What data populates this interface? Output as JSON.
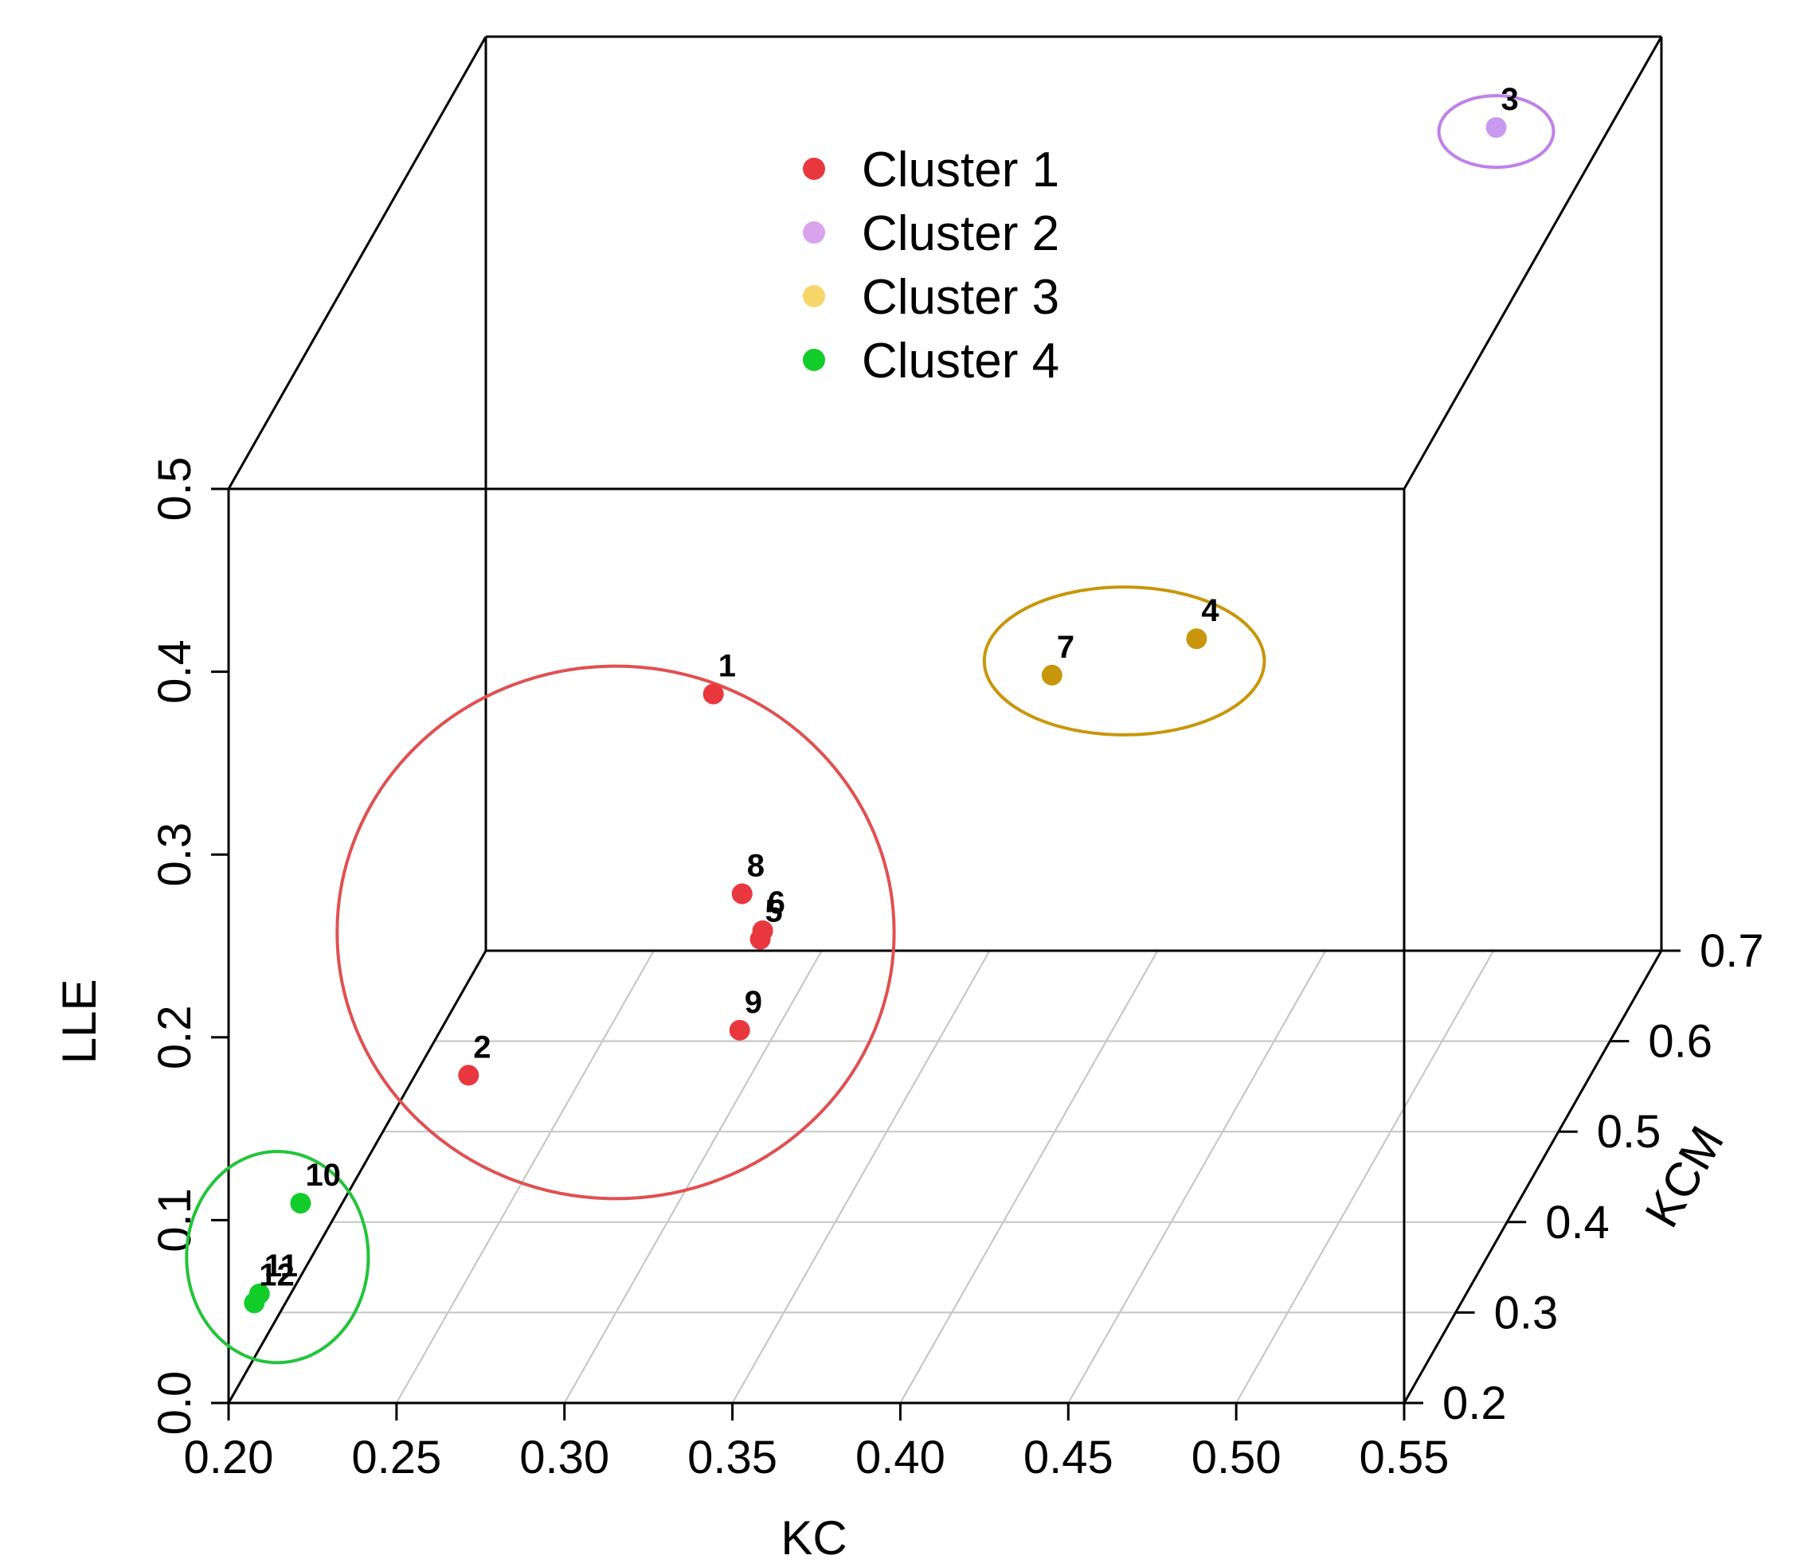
{
  "chart_data": {
    "type": "scatter3d",
    "title": "",
    "xlabel": "KC",
    "ylabel": "KCM",
    "zlabel": "LLE",
    "xlim": [
      0.2,
      0.55
    ],
    "ylim": [
      0.2,
      0.7
    ],
    "zlim": [
      0.0,
      0.5
    ],
    "x_ticks": [
      "0.20",
      "0.25",
      "0.30",
      "0.35",
      "0.40",
      "0.45",
      "0.50",
      "0.55"
    ],
    "y_ticks": [
      "0.2",
      "0.3",
      "0.4",
      "0.5",
      "0.6",
      "0.7"
    ],
    "z_ticks": [
      "0.0",
      "0.1",
      "0.2",
      "0.3",
      "0.4",
      "0.5"
    ],
    "grid": true,
    "legend_position": "top-center",
    "series": [
      {
        "name": "Cluster 1",
        "color": "#e8383d",
        "ring_color": "#e05050",
        "points": [
          {
            "label": "1",
            "x": 0.28,
            "y": 0.62,
            "z": 0.18
          },
          {
            "label": "2",
            "x": 0.25,
            "y": 0.34,
            "z": 0.11
          },
          {
            "label": "5",
            "x": 0.32,
            "y": 0.45,
            "z": 0.13
          },
          {
            "label": "6",
            "x": 0.31,
            "y": 0.52,
            "z": 0.1
          },
          {
            "label": "8",
            "x": 0.31,
            "y": 0.48,
            "z": 0.14
          },
          {
            "label": "9",
            "x": 0.32,
            "y": 0.41,
            "z": 0.1
          }
        ]
      },
      {
        "name": "Cluster 2",
        "color": "#c89af0",
        "ring_color": "#c080e8",
        "points": [
          {
            "label": "3",
            "x": 0.51,
            "y": 0.64,
            "z": 0.48
          }
        ]
      },
      {
        "name": "Cluster 3",
        "color": "#c8960a",
        "ring_color": "#c8960a",
        "points": [
          {
            "label": "4",
            "x": 0.43,
            "y": 0.58,
            "z": 0.23
          },
          {
            "label": "7",
            "x": 0.39,
            "y": 0.56,
            "z": 0.22
          }
        ]
      },
      {
        "name": "Cluster 4",
        "color": "#12cc2a",
        "ring_color": "#22c43a",
        "points": [
          {
            "label": "10",
            "x": 0.2,
            "y": 0.34,
            "z": 0.04
          },
          {
            "label": "11",
            "x": 0.2,
            "y": 0.26,
            "z": 0.03
          },
          {
            "label": "12",
            "x": 0.2,
            "y": 0.25,
            "z": 0.03
          }
        ]
      }
    ],
    "legend_colors": [
      "#e8383d",
      "#d9a3ee",
      "#f6d66a",
      "#12cc2a"
    ]
  }
}
